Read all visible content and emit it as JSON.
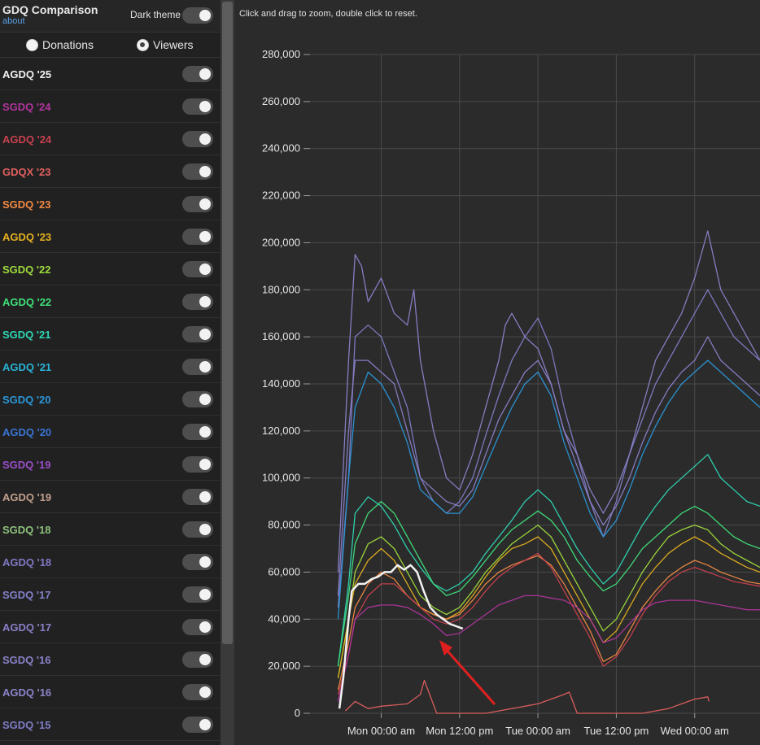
{
  "header": {
    "title": "GDQ Comparison",
    "about": "about",
    "dark_theme_label": "Dark theme"
  },
  "mode": {
    "options": [
      "Donations",
      "Viewers"
    ],
    "selected": "Viewers"
  },
  "events": [
    {
      "label": "AGDQ '25",
      "color": "#f2f2f2",
      "enabled": true
    },
    {
      "label": "SGDQ '24",
      "color": "#b0359c",
      "enabled": true
    },
    {
      "label": "AGDQ '24",
      "color": "#c8414f",
      "enabled": true
    },
    {
      "label": "GDQX '23",
      "color": "#e0605f",
      "enabled": true
    },
    {
      "label": "SGDQ '23",
      "color": "#f08a43",
      "enabled": true
    },
    {
      "label": "AGDQ '23",
      "color": "#e3b020",
      "enabled": true
    },
    {
      "label": "SGDQ '22",
      "color": "#9fdb3b",
      "enabled": true
    },
    {
      "label": "AGDQ '22",
      "color": "#3fe07a",
      "enabled": true
    },
    {
      "label": "SGDQ '21",
      "color": "#2fd6b3",
      "enabled": true
    },
    {
      "label": "AGDQ '21",
      "color": "#2ab3d6",
      "enabled": true
    },
    {
      "label": "SGDQ '20",
      "color": "#2a97d8",
      "enabled": true
    },
    {
      "label": "AGDQ '20",
      "color": "#3a74d6",
      "enabled": true
    },
    {
      "label": "SGDQ '19",
      "color": "#9a4ec8",
      "enabled": true
    },
    {
      "label": "AGDQ '19",
      "color": "#c2a08c",
      "enabled": true
    },
    {
      "label": "SGDQ '18",
      "color": "#8ec07c",
      "enabled": true
    },
    {
      "label": "AGDQ '18",
      "color": "#7f79c4",
      "enabled": true
    },
    {
      "label": "SGDQ '17",
      "color": "#8281c9",
      "enabled": true
    },
    {
      "label": "AGDQ '17",
      "color": "#8a7fc8",
      "enabled": true
    },
    {
      "label": "SGDQ '16",
      "color": "#8a82c9",
      "enabled": true
    },
    {
      "label": "AGDQ '16",
      "color": "#8b84cb",
      "enabled": true
    },
    {
      "label": "SGDQ '15",
      "color": "#7f7cc6",
      "enabled": true
    }
  ],
  "chart_hint": "Click and drag to zoom, double click to reset.",
  "chart_data": {
    "type": "line",
    "xlabel": "",
    "ylabel": "",
    "ylim": [
      0,
      280000
    ],
    "xlim_hours": [
      -10.9,
      58.0
    ],
    "grid": true,
    "y_ticks": [
      {
        "label": "0",
        "value": 0
      },
      {
        "label": "20,000",
        "value": 20000
      },
      {
        "label": "40,000",
        "value": 40000
      },
      {
        "label": "60,000",
        "value": 60000
      },
      {
        "label": "80,000",
        "value": 80000
      },
      {
        "label": "100,000",
        "value": 100000
      },
      {
        "label": "120,000",
        "value": 120000
      },
      {
        "label": "140,000",
        "value": 140000
      },
      {
        "label": "160,000",
        "value": 160000
      },
      {
        "label": "180,000",
        "value": 180000
      },
      {
        "label": "200,000",
        "value": 200000
      },
      {
        "label": "220,000",
        "value": 220000
      },
      {
        "label": "240,000",
        "value": 240000
      },
      {
        "label": "260,000",
        "value": 260000
      },
      {
        "label": "280,000",
        "value": 280000
      }
    ],
    "x_ticks": [
      {
        "label": "Mon 00:00 am",
        "hour": 0
      },
      {
        "label": "Mon 12:00 pm",
        "hour": 12
      },
      {
        "label": "Tue 00:00 am",
        "hour": 24
      },
      {
        "label": "Tue 12:00 pm",
        "hour": 36
      },
      {
        "label": "Wed 00:00 am",
        "hour": 48
      }
    ],
    "series": [
      {
        "name": "SGDQ '15",
        "hours": [
          -6.6,
          -5,
          -4,
          -2,
          0,
          2,
          4,
          6,
          8,
          10,
          12,
          14,
          16,
          18,
          20,
          22,
          24,
          26,
          28,
          30,
          32,
          34,
          36,
          38,
          40,
          42,
          44,
          46,
          48,
          50,
          52,
          54,
          56,
          58
        ],
        "values": [
          45000,
          100000,
          160000,
          165000,
          160000,
          145000,
          130000,
          100000,
          90000,
          85000,
          90000,
          100000,
          118000,
          135000,
          150000,
          160000,
          168000,
          155000,
          130000,
          110000,
          90000,
          75000,
          90000,
          110000,
          125000,
          140000,
          150000,
          160000,
          170000,
          180000,
          170000,
          160000,
          155000,
          150000
        ]
      },
      {
        "name": "SGDQ '16",
        "hours": [
          -6.6,
          -5,
          -4,
          -3,
          -2,
          0,
          2,
          4,
          5,
          6,
          8,
          10,
          12,
          14,
          16,
          18,
          19,
          20,
          22,
          24,
          26,
          28,
          30,
          32,
          34,
          36,
          38,
          40,
          42,
          44,
          46,
          48,
          50,
          52,
          54,
          56,
          58
        ],
        "values": [
          60000,
          150000,
          195000,
          190000,
          175000,
          185000,
          170000,
          165000,
          180000,
          150000,
          120000,
          100000,
          95000,
          110000,
          130000,
          150000,
          165000,
          170000,
          160000,
          155000,
          140000,
          120000,
          110000,
          95000,
          85000,
          95000,
          110000,
          130000,
          150000,
          160000,
          170000,
          185000,
          205000,
          180000,
          170000,
          160000,
          150000
        ]
      },
      {
        "name": "AGDQ '17",
        "hours": [
          -6.6,
          -5,
          -4,
          -2,
          0,
          2,
          4,
          6,
          8,
          10,
          12,
          14,
          16,
          18,
          20,
          22,
          24,
          26,
          28,
          30,
          32,
          34,
          36,
          38,
          40,
          42,
          44,
          46,
          48,
          50,
          52,
          54,
          56,
          58
        ],
        "values": [
          50000,
          120000,
          150000,
          150000,
          145000,
          140000,
          120000,
          100000,
          95000,
          90000,
          88000,
          95000,
          110000,
          125000,
          135000,
          145000,
          150000,
          140000,
          120000,
          105000,
          90000,
          80000,
          88000,
          100000,
          115000,
          128000,
          138000,
          145000,
          150000,
          160000,
          150000,
          145000,
          140000,
          135000
        ]
      },
      {
        "name": "SGDQ '20",
        "hours": [
          -6.6,
          -5,
          -4,
          -2,
          0,
          2,
          4,
          6,
          8,
          10,
          12,
          14,
          16,
          18,
          20,
          22,
          24,
          26,
          28,
          30,
          32,
          34,
          36,
          38,
          40,
          42,
          44,
          46,
          48,
          50,
          52,
          54,
          56,
          58
        ],
        "values": [
          40000,
          100000,
          130000,
          145000,
          140000,
          130000,
          115000,
          95000,
          90000,
          85000,
          85000,
          92000,
          105000,
          118000,
          130000,
          140000,
          145000,
          135000,
          115000,
          100000,
          85000,
          75000,
          82000,
          95000,
          110000,
          122000,
          132000,
          140000,
          145000,
          150000,
          145000,
          140000,
          135000,
          130000
        ]
      },
      {
        "name": "SGDQ '21",
        "hours": [
          -6.6,
          -5,
          -4,
          -2,
          0,
          2,
          4,
          6,
          8,
          10,
          12,
          14,
          16,
          18,
          20,
          22,
          24,
          26,
          28,
          30,
          32,
          34,
          36,
          38,
          40,
          42,
          44,
          46,
          48,
          50,
          52,
          54,
          56,
          58
        ],
        "values": [
          20000,
          55000,
          85000,
          92000,
          88000,
          80000,
          70000,
          62000,
          55000,
          52000,
          55000,
          60000,
          68000,
          75000,
          82000,
          90000,
          95000,
          90000,
          80000,
          70000,
          62000,
          55000,
          60000,
          70000,
          80000,
          88000,
          95000,
          100000,
          105000,
          110000,
          100000,
          95000,
          90000,
          88000
        ]
      },
      {
        "name": "AGDQ '22",
        "hours": [
          -6.6,
          -5,
          -4,
          -2,
          0,
          2,
          4,
          6,
          8,
          10,
          12,
          14,
          16,
          18,
          20,
          22,
          24,
          26,
          28,
          30,
          32,
          34,
          36,
          38,
          40,
          42,
          44,
          46,
          48,
          50,
          52,
          54,
          56,
          58
        ],
        "values": [
          20000,
          50000,
          72000,
          85000,
          90000,
          85000,
          75000,
          65000,
          55000,
          50000,
          52000,
          58000,
          65000,
          72000,
          78000,
          82000,
          86000,
          82000,
          75000,
          65000,
          58000,
          52000,
          55000,
          62000,
          70000,
          75000,
          80000,
          85000,
          88000,
          85000,
          80000,
          75000,
          72000,
          70000
        ]
      },
      {
        "name": "SGDQ '22",
        "hours": [
          -6.6,
          -5,
          -4,
          -2,
          0,
          2,
          4,
          6,
          8,
          10,
          12,
          14,
          16,
          18,
          20,
          22,
          24,
          26,
          28,
          30,
          32,
          34,
          36,
          38,
          40,
          42,
          44,
          46,
          48,
          50,
          52,
          54,
          56,
          58
        ],
        "values": [
          15000,
          40000,
          60000,
          72000,
          75000,
          70000,
          60000,
          50000,
          45000,
          42000,
          45000,
          52000,
          60000,
          66000,
          72000,
          76000,
          80000,
          75000,
          65000,
          55000,
          45000,
          35000,
          40000,
          50000,
          60000,
          68000,
          75000,
          78000,
          80000,
          78000,
          72000,
          68000,
          65000,
          62000
        ]
      },
      {
        "name": "AGDQ '23",
        "hours": [
          -6.6,
          -5,
          -4,
          -2,
          0,
          2,
          4,
          6,
          8,
          10,
          12,
          14,
          16,
          18,
          20,
          22,
          24,
          26,
          28,
          30,
          32,
          34,
          36,
          38,
          40,
          42,
          44,
          46,
          48,
          50,
          52,
          54,
          56,
          58
        ],
        "values": [
          15000,
          40000,
          55000,
          65000,
          70000,
          65000,
          55000,
          45000,
          42000,
          40000,
          43000,
          50000,
          58000,
          65000,
          70000,
          72000,
          75000,
          70000,
          60000,
          50000,
          40000,
          30000,
          35000,
          45000,
          55000,
          62000,
          68000,
          72000,
          75000,
          72000,
          68000,
          65000,
          62000,
          60000
        ]
      },
      {
        "name": "SGDQ '23",
        "hours": [
          -6.6,
          -5,
          -4,
          -2,
          0,
          2,
          4,
          6,
          8,
          10,
          12,
          14,
          16,
          18,
          20,
          22,
          24,
          26,
          28,
          30,
          32,
          34,
          36,
          38,
          40,
          42,
          44,
          46,
          48,
          50,
          52,
          54,
          56,
          58
        ],
        "values": [
          10000,
          30000,
          45000,
          55000,
          60000,
          57000,
          50000,
          45000,
          42000,
          40000,
          42000,
          48000,
          55000,
          60000,
          63000,
          65000,
          67000,
          63000,
          55000,
          45000,
          35000,
          22000,
          25000,
          35000,
          45000,
          52000,
          58000,
          62000,
          65000,
          63000,
          60000,
          58000,
          56000,
          55000
        ]
      },
      {
        "name": "AGDQ '24",
        "hours": [
          -6.6,
          -5,
          -4,
          -2,
          0,
          2,
          4,
          6,
          8,
          10,
          12,
          14,
          16,
          18,
          20,
          22,
          24,
          26,
          28,
          30,
          32,
          34,
          36,
          38,
          40,
          42,
          44,
          46,
          48,
          50,
          52,
          54,
          56,
          58
        ],
        "values": [
          8000,
          25000,
          40000,
          50000,
          55000,
          55000,
          50000,
          45000,
          40000,
          38000,
          40000,
          45000,
          52000,
          58000,
          62000,
          65000,
          68000,
          62000,
          52000,
          42000,
          32000,
          20000,
          24000,
          32000,
          42000,
          50000,
          56000,
          60000,
          62000,
          60000,
          58000,
          56000,
          55000,
          54000
        ]
      },
      {
        "name": "SGDQ '24",
        "hours": [
          -6.6,
          -5,
          -4,
          -2,
          0,
          2,
          4,
          6,
          8,
          10,
          12,
          14,
          16,
          18,
          20,
          22,
          24,
          26,
          28,
          30,
          32,
          34,
          36,
          38,
          40,
          42,
          44,
          46,
          48,
          50,
          52,
          54,
          56,
          58
        ],
        "values": [
          5000,
          25000,
          40000,
          45000,
          46000,
          46000,
          45000,
          42000,
          38000,
          33000,
          34000,
          38000,
          42000,
          46000,
          48000,
          50000,
          50000,
          49000,
          48000,
          45000,
          40000,
          30000,
          32000,
          38000,
          44000,
          47000,
          48000,
          48000,
          48000,
          47000,
          46000,
          45000,
          44000,
          44000
        ]
      },
      {
        "name": "GDQX '23",
        "hours": [
          -5.5,
          -4,
          -2,
          0,
          2,
          4,
          5,
          6,
          6.6,
          8.5,
          10,
          12,
          14,
          16,
          18,
          20,
          22,
          24,
          26,
          28,
          28.8,
          30,
          32,
          34,
          36,
          38,
          40,
          42,
          44,
          46,
          48,
          50,
          50.2
        ],
        "values": [
          1000,
          5000,
          2000,
          3000,
          3500,
          4000,
          6000,
          8000,
          14000,
          0,
          0,
          0,
          0,
          0,
          1000,
          2000,
          3000,
          4000,
          6000,
          8000,
          9000,
          0,
          0,
          0,
          0,
          0,
          0,
          1000,
          2000,
          4000,
          6000,
          7000,
          5000
        ]
      },
      {
        "name": "AGDQ '25",
        "hours": [
          -6.4,
          -5.8,
          -5,
          -4.5,
          -3.5,
          -2.5,
          -1.5,
          -0.5,
          0.5,
          1.5,
          2.5,
          3.5,
          4.5,
          5.5,
          6.5,
          7.5,
          8.5,
          9.5,
          10.5,
          11.5,
          12.5
        ],
        "values": [
          2000,
          15000,
          40000,
          52000,
          55000,
          55000,
          57000,
          58000,
          60000,
          60000,
          63000,
          61000,
          63000,
          60000,
          52000,
          45000,
          42000,
          40000,
          38000,
          37000,
          36000
        ]
      }
    ]
  },
  "annotation": {
    "type": "arrow",
    "color": "#e02020"
  }
}
